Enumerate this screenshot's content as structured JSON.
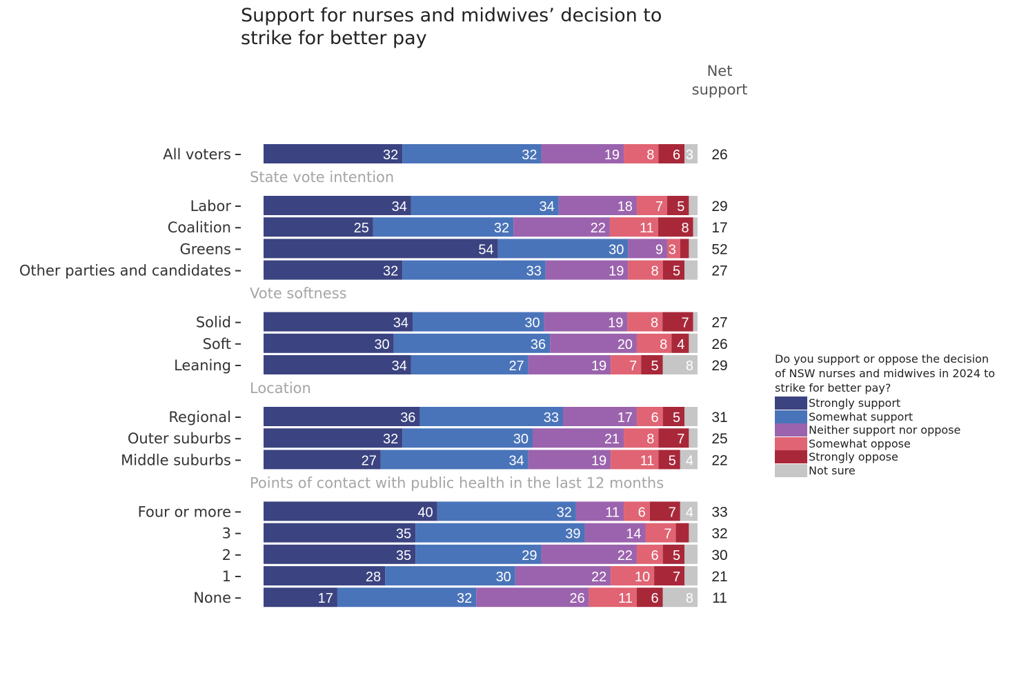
{
  "title_line1": "Support for nurses and midwives’ decision to",
  "title_line2": "strike for better pay",
  "net_header_line1": "Net",
  "net_header_line2": "support",
  "legend": {
    "title_line1": "Do you support or oppose the decision",
    "title_line2": "of NSW nurses and midwives in 2024 to",
    "title_line3": "strike for better pay?",
    "items": [
      {
        "label": "Strongly support",
        "color": "#3b4380"
      },
      {
        "label": "Somewhat support",
        "color": "#4a74b9"
      },
      {
        "label": "Neither support nor oppose",
        "color": "#9b63ad"
      },
      {
        "label": "Somewhat oppose",
        "color": "#e06473"
      },
      {
        "label": "Strongly oppose",
        "color": "#a8283a"
      },
      {
        "label": "Not sure",
        "color": "#c6c6c6"
      }
    ]
  },
  "chart_data": {
    "type": "bar",
    "orientation": "horizontal-stacked-100",
    "series_names": [
      "Strongly support",
      "Somewhat support",
      "Neither support nor oppose",
      "Somewhat oppose",
      "Strongly oppose",
      "Not sure"
    ],
    "groups": [
      {
        "heading": "",
        "rows": [
          {
            "label": "All voters",
            "values": [
              32,
              32,
              19,
              8,
              6,
              3
            ],
            "net": 26
          }
        ]
      },
      {
        "heading": "State vote intention",
        "rows": [
          {
            "label": "Labor",
            "values": [
              34,
              34,
              18,
              7,
              5,
              2
            ],
            "net": 29
          },
          {
            "label": "Coalition",
            "values": [
              25,
              32,
              22,
              11,
              8,
              1
            ],
            "net": 17
          },
          {
            "label": "Greens",
            "values": [
              54,
              30,
              9,
              3,
              2,
              2
            ],
            "net": 52
          },
          {
            "label": "Other parties and candidates",
            "values": [
              32,
              33,
              19,
              8,
              5,
              3
            ],
            "net": 27
          }
        ]
      },
      {
        "heading": "Vote softness",
        "rows": [
          {
            "label": "Solid",
            "values": [
              34,
              30,
              19,
              8,
              7,
              1
            ],
            "net": 27
          },
          {
            "label": "Soft",
            "values": [
              30,
              36,
              20,
              8,
              4,
              2
            ],
            "net": 26
          },
          {
            "label": "Leaning",
            "values": [
              34,
              27,
              19,
              7,
              5,
              8
            ],
            "net": 29
          }
        ]
      },
      {
        "heading": "Location",
        "rows": [
          {
            "label": "Regional",
            "values": [
              36,
              33,
              17,
              6,
              5,
              3
            ],
            "net": 31
          },
          {
            "label": "Outer suburbs",
            "values": [
              32,
              30,
              21,
              8,
              7,
              2
            ],
            "net": 25
          },
          {
            "label": "Middle suburbs",
            "values": [
              27,
              34,
              19,
              11,
              5,
              4
            ],
            "net": 22
          }
        ]
      },
      {
        "heading": "Points of contact with public health in the last 12 months",
        "rows": [
          {
            "label": "Four or more",
            "values": [
              40,
              32,
              11,
              6,
              7,
              4
            ],
            "net": 33
          },
          {
            "label": "3",
            "values": [
              35,
              39,
              14,
              7,
              3,
              2
            ],
            "net": 32
          },
          {
            "label": "2",
            "values": [
              35,
              29,
              22,
              6,
              5,
              3
            ],
            "net": 30
          },
          {
            "label": "1",
            "values": [
              28,
              30,
              22,
              10,
              7,
              3
            ],
            "net": 21
          },
          {
            "label": "None",
            "values": [
              17,
              32,
              26,
              11,
              6,
              8
            ],
            "net": 11
          }
        ]
      }
    ],
    "hidden_labels_below": 3,
    "shown_small_labels": [
      {
        "group": 0,
        "row": 0,
        "series": 5
      },
      {
        "group": 1,
        "row": 2,
        "series": 3
      }
    ]
  }
}
